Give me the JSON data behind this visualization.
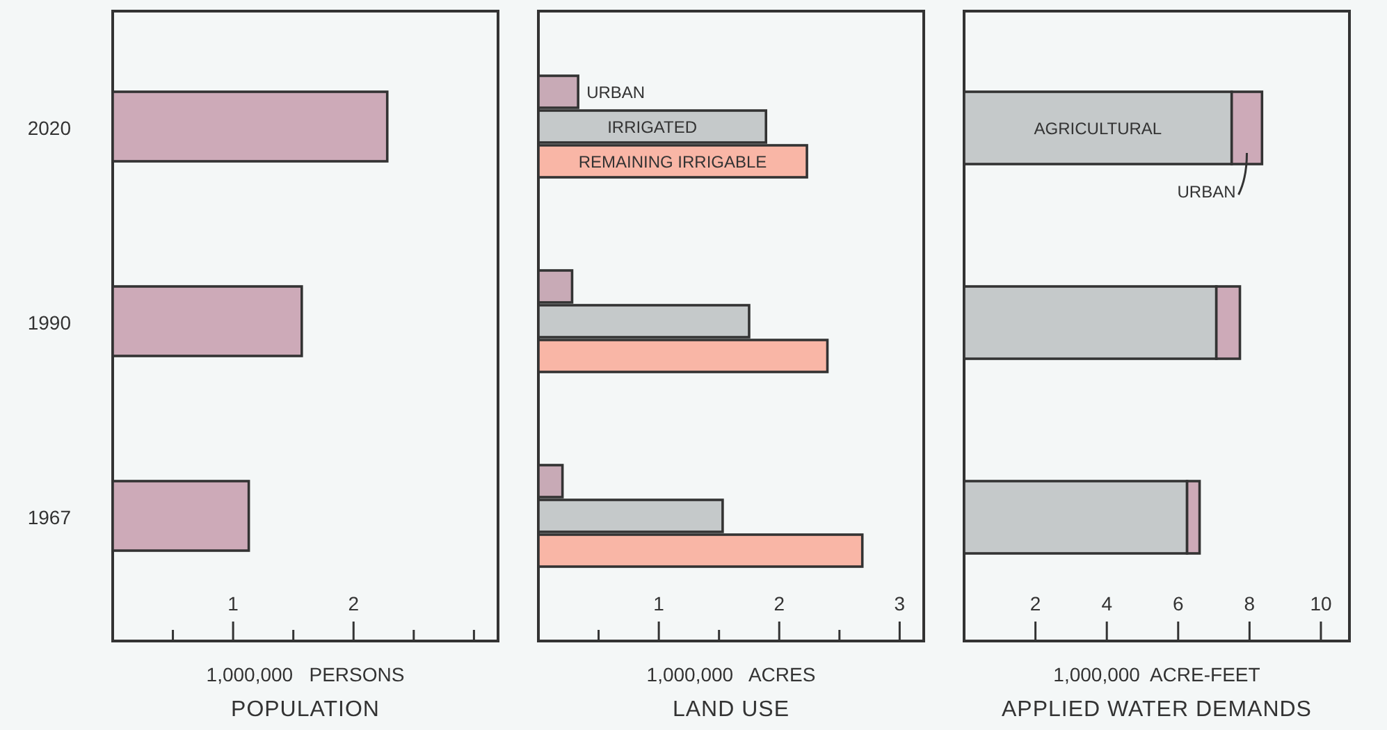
{
  "chart_data": [
    {
      "type": "bar",
      "orientation": "horizontal",
      "title": "POPULATION",
      "xlabel": "1,000,000   PERSONS",
      "categories": [
        "2020",
        "1990",
        "1967"
      ],
      "series": [
        {
          "color": "#cdaab8",
          "values": [
            2.28,
            1.57,
            1.13
          ]
        }
      ],
      "xlim": [
        0,
        3.2
      ],
      "xticks": [
        {
          "value": 0.5,
          "label": null
        },
        1,
        {
          "value": 1.5,
          "label": null
        },
        2,
        {
          "value": 2.5,
          "label": null
        },
        {
          "value": 3,
          "label": null
        }
      ]
    },
    {
      "type": "bar",
      "orientation": "horizontal",
      "title": "LAND USE",
      "xlabel": "1,000,000   ACRES",
      "categories": [
        "2020",
        "1990",
        "1967"
      ],
      "tick_labels": "x",
      "series": [
        {
          "name": "URBAN",
          "color": "#c8aab6",
          "values": [
            0.33,
            0.28,
            0.2
          ]
        },
        {
          "name": "IRRIGATED",
          "color": "#c5c9ca",
          "values": [
            1.89,
            1.75,
            1.53
          ]
        },
        {
          "name": "REMAINING IRRIGABLE",
          "color": "#f9b6a6",
          "values": [
            2.23,
            2.4,
            2.69
          ]
        }
      ],
      "xlim": [
        0,
        3.2
      ],
      "xticks": [
        {
          "value": 0.5,
          "label": null
        },
        1,
        {
          "value": 1.5,
          "label": null
        },
        2,
        {
          "value": 2.5,
          "label": null
        },
        3
      ]
    },
    {
      "type": "bar",
      "orientation": "horizontal",
      "stacked": true,
      "title": "APPLIED WATER DEMANDS",
      "xlabel": "1,000,000  ACRE-FEET",
      "categories": [
        "2020",
        "1990",
        "1967"
      ],
      "tick_labels": "x",
      "series": [
        {
          "name": "AGRICULTURAL",
          "color": "#c5c9ca",
          "values": [
            7.5,
            7.07,
            6.25
          ]
        },
        {
          "name": "URBAN",
          "color": "#cdaab8",
          "values": [
            0.85,
            0.66,
            0.35
          ]
        }
      ],
      "xlim": [
        0,
        10.8
      ],
      "xticks": [
        2,
        4,
        6,
        8,
        10
      ]
    }
  ]
}
